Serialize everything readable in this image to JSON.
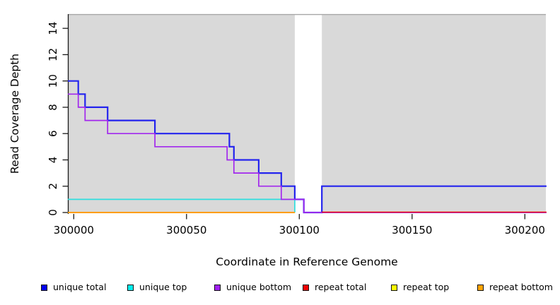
{
  "chart_data": {
    "type": "step-line",
    "title": "",
    "xlabel": "Coordinate in Reference Genome",
    "ylabel": "Read Coverage Depth",
    "x_ticks": [
      300000,
      300050,
      300100,
      300150,
      300200
    ],
    "y_ticks": [
      0,
      2,
      4,
      6,
      8,
      10,
      12,
      14
    ],
    "xlim": [
      299997,
      300210
    ],
    "ylim": [
      0,
      15.1
    ],
    "panel_bg": "#d9d9d9",
    "panel_top_border_color": "#a6a6a6",
    "axis_color": "#1a1a1a",
    "gap_band": {
      "x0": 300098,
      "x1": 300110,
      "color": "#ffffff"
    },
    "series": [
      {
        "name": "unique total",
        "color": "#2424ee",
        "width": 2.2,
        "dy": 0,
        "points": [
          [
            299997.4,
            10
          ],
          [
            300002,
            10
          ],
          [
            300002,
            9
          ],
          [
            300005,
            9
          ],
          [
            300005,
            8
          ],
          [
            300015,
            8
          ],
          [
            300015,
            7
          ],
          [
            300036,
            7
          ],
          [
            300036,
            6
          ],
          [
            300069,
            6
          ],
          [
            300069,
            5
          ],
          [
            300071,
            5
          ],
          [
            300071,
            4
          ],
          [
            300082,
            4
          ],
          [
            300082,
            3
          ],
          [
            300092,
            3
          ],
          [
            300092,
            2
          ],
          [
            300098,
            2
          ],
          [
            300098,
            1
          ],
          [
            300102,
            1
          ],
          [
            300102,
            0
          ],
          [
            300110,
            0
          ],
          [
            300110,
            2
          ],
          [
            300209.6,
            2
          ]
        ]
      },
      {
        "name": "unique top",
        "color": "#2fdede",
        "width": 1.7,
        "dy": 0,
        "points": [
          [
            299997.4,
            1
          ],
          [
            300098,
            1
          ],
          [
            300098,
            0
          ]
        ]
      },
      {
        "name": "unique bottom",
        "color": "#a228ed",
        "width": 1.7,
        "dy": 0,
        "points": [
          [
            299997.4,
            9
          ],
          [
            300002,
            9
          ],
          [
            300002,
            8
          ],
          [
            300005,
            8
          ],
          [
            300005,
            7
          ],
          [
            300015,
            7
          ],
          [
            300015,
            6
          ],
          [
            300036,
            6
          ],
          [
            300036,
            5
          ],
          [
            300068,
            5
          ],
          [
            300068,
            4
          ],
          [
            300071,
            4
          ],
          [
            300071,
            3
          ],
          [
            300082,
            3
          ],
          [
            300082,
            2
          ],
          [
            300092,
            2
          ],
          [
            300092,
            1
          ],
          [
            300102,
            1
          ],
          [
            300102,
            0
          ],
          [
            300209.6,
            0
          ]
        ]
      },
      {
        "name": "repeat top",
        "color": "#ffff00",
        "width": 1.4,
        "dy": 0,
        "points": [
          [
            299997.4,
            0
          ],
          [
            300098,
            0
          ]
        ]
      },
      {
        "name": "repeat bottom",
        "color": "#ff9d00",
        "width": 2.0,
        "dy": 0,
        "points": [
          [
            299997.4,
            0
          ],
          [
            300098,
            0
          ]
        ]
      },
      {
        "name": "repeat total",
        "color": "#ee0000",
        "width": 1.4,
        "dy": -0.6,
        "points": [
          [
            300110,
            0
          ],
          [
            300209.6,
            0
          ]
        ]
      }
    ]
  },
  "legend": {
    "items": [
      {
        "label": "unique total",
        "color": "#0000ee"
      },
      {
        "label": "unique top",
        "color": "#00eeee"
      },
      {
        "label": "unique bottom",
        "color": "#a020f0"
      },
      {
        "label": "repeat total",
        "color": "#ee0000"
      },
      {
        "label": "repeat top",
        "color": "#ffff00"
      },
      {
        "label": "repeat bottom",
        "color": "#ffa500"
      }
    ]
  }
}
